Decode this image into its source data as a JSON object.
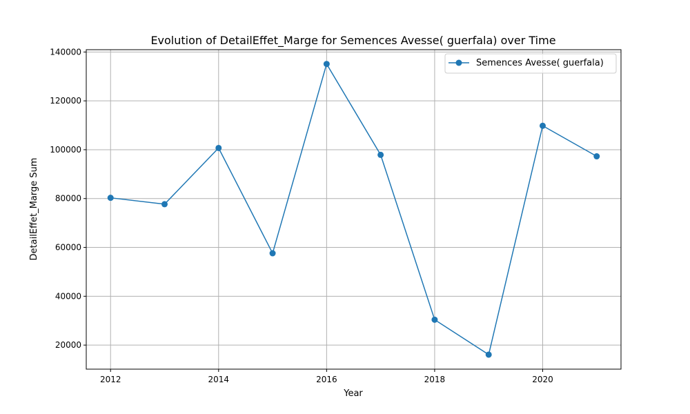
{
  "chart_data": {
    "type": "line",
    "title": "Evolution of DetailEffet_Marge for Semences Avesse( guerfala) over Time",
    "xlabel": "Year",
    "ylabel": "DetailEffet_Marge Sum",
    "x": [
      2012,
      2013,
      2014,
      2015,
      2016,
      2017,
      2018,
      2019,
      2020,
      2021
    ],
    "series": [
      {
        "name": "Semences Avesse( guerfala)",
        "values": [
          80300,
          77700,
          100700,
          57600,
          135100,
          97900,
          30400,
          16100,
          109800,
          97300
        ],
        "color": "#1f77b4",
        "marker": "circle"
      }
    ],
    "xlim": [
      2011.55,
      2021.45
    ],
    "ylim": [
      10150,
      140950
    ],
    "xticks": [
      2012,
      2014,
      2016,
      2018,
      2020
    ],
    "xtick_labels": [
      "2012",
      "2014",
      "2016",
      "2018",
      "2020"
    ],
    "yticks": [
      20000,
      40000,
      60000,
      80000,
      100000,
      120000,
      140000
    ],
    "ytick_labels": [
      "20000",
      "40000",
      "60000",
      "80000",
      "100000",
      "120000",
      "140000"
    ],
    "grid": true,
    "legend_position": "top-right"
  }
}
